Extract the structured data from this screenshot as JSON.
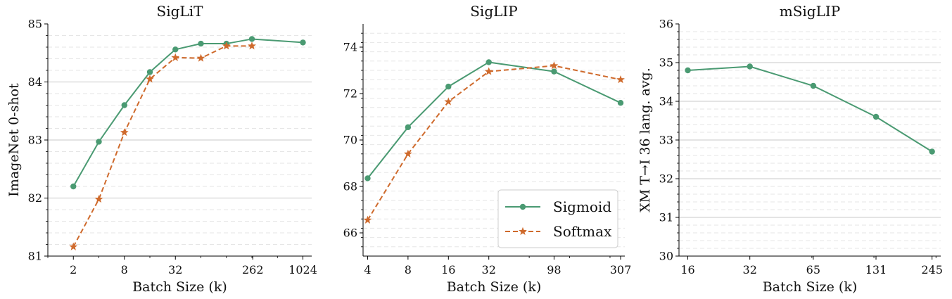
{
  "colors": {
    "sigmoid": "#4a9a72",
    "softmax": "#cf6a2c",
    "grid": "#d6d6d6"
  },
  "legend": {
    "placement": "lower-right",
    "panel": 1,
    "entries": [
      "Sigmoid",
      "Softmax"
    ]
  },
  "chart_data": [
    {
      "type": "line",
      "title": "SigLiT",
      "xlabel": "Batch Size (k)",
      "ylabel": "ImageNet 0-shot",
      "x_scale": "log2",
      "xlim": [
        1,
        1300
      ],
      "ylim": [
        81,
        85
      ],
      "xticks": [
        2,
        8,
        32,
        262,
        1024
      ],
      "xtick_labels": [
        "2",
        "8",
        "32",
        "262",
        "1024"
      ],
      "yticks": [
        81,
        82,
        83,
        84,
        85
      ],
      "grid": true,
      "series": [
        {
          "name": "Sigmoid",
          "marker": "circle",
          "linestyle": "solid",
          "x": [
            2,
            4,
            8,
            16,
            32,
            64,
            128,
            256,
            1024
          ],
          "y": [
            82.2,
            82.97,
            83.6,
            84.17,
            84.56,
            84.66,
            84.66,
            84.74,
            84.68
          ]
        },
        {
          "name": "Softmax",
          "marker": "star",
          "linestyle": "dashed",
          "x": [
            2,
            4,
            8,
            16,
            32,
            64,
            128,
            256
          ],
          "y": [
            81.16,
            81.98,
            83.13,
            84.05,
            84.42,
            84.41,
            84.62,
            84.62
          ]
        }
      ]
    },
    {
      "type": "line",
      "title": "SigLIP",
      "xlabel": "Batch Size (k)",
      "ylabel": "",
      "x_scale": "log2",
      "xlim": [
        3.7,
        330
      ],
      "ylim": [
        65,
        75
      ],
      "xticks": [
        4,
        8,
        16,
        32,
        98,
        307
      ],
      "xtick_labels": [
        "4",
        "8",
        "16",
        "32",
        "98",
        "307"
      ],
      "yticks": [
        66,
        68,
        70,
        72,
        74
      ],
      "grid": true,
      "series": [
        {
          "name": "Sigmoid",
          "marker": "circle",
          "linestyle": "solid",
          "x": [
            4,
            8,
            16,
            32,
            98,
            307
          ],
          "y": [
            68.35,
            70.55,
            72.3,
            73.35,
            72.95,
            71.6
          ]
        },
        {
          "name": "Softmax",
          "marker": "star",
          "linestyle": "dashed",
          "x": [
            4,
            8,
            16,
            32,
            98,
            307
          ],
          "y": [
            66.55,
            69.4,
            71.65,
            72.95,
            73.2,
            72.6
          ]
        }
      ]
    },
    {
      "type": "line",
      "title": "mSigLIP",
      "xlabel": "Batch Size (k)",
      "ylabel": "XM T→I 36 lang. avg.",
      "x_scale": "log2",
      "xlim": [
        14.5,
        270
      ],
      "ylim": [
        30,
        36
      ],
      "xticks": [
        16,
        32,
        65,
        131,
        245
      ],
      "xtick_labels": [
        "16",
        "32",
        "65",
        "131",
        "245"
      ],
      "yticks": [
        30,
        31,
        32,
        33,
        34,
        35,
        36
      ],
      "grid": true,
      "series": [
        {
          "name": "Sigmoid",
          "marker": "circle",
          "linestyle": "solid",
          "x": [
            16,
            32,
            65,
            131,
            245
          ],
          "y": [
            34.8,
            34.9,
            34.4,
            33.6,
            32.7
          ]
        }
      ]
    }
  ]
}
